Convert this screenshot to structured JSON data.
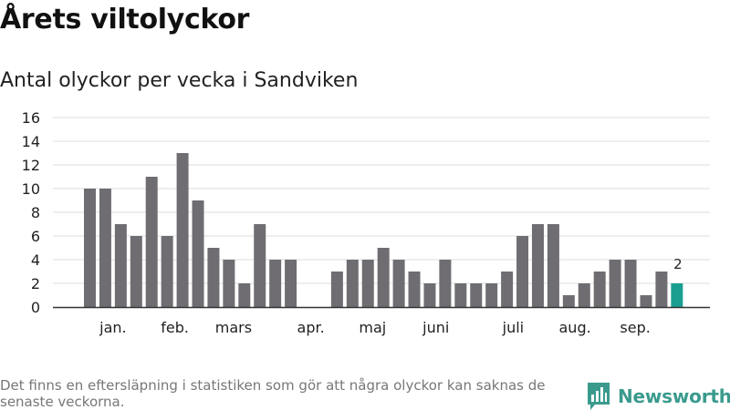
{
  "title": "Årets viltolyckor",
  "subtitle": "Antal olyckor per vecka i Sandviken",
  "footnote": "Det finns en eftersläpning i statistiken som gör att några olyckor kan saknas de senaste veckorna.",
  "brand": {
    "name": "Newsworthy",
    "logo_icon": "newsworthy-logo-icon"
  },
  "colors": {
    "bar": "#6f6d72",
    "highlight": "#1a9e8f",
    "grid": "#dddddd",
    "axis": "#333333",
    "brand": "#3a9b8d"
  },
  "chart_data": {
    "type": "bar",
    "title": "Årets viltolyckor",
    "subtitle": "Antal olyckor per vecka i Sandviken",
    "xlabel": "",
    "ylabel": "",
    "ylim": [
      0,
      16
    ],
    "y_ticks": [
      0,
      2,
      4,
      6,
      8,
      10,
      12,
      14,
      16
    ],
    "grid": true,
    "weeks": [
      1,
      2,
      3,
      4,
      5,
      6,
      7,
      8,
      9,
      10,
      11,
      12,
      13,
      14,
      15,
      16,
      17,
      18,
      19,
      20,
      21,
      22,
      23,
      24,
      25,
      26,
      27,
      28,
      29,
      30,
      31,
      32,
      33,
      34,
      35,
      36,
      37,
      38,
      39
    ],
    "values": [
      10,
      10,
      7,
      6,
      11,
      6,
      13,
      9,
      5,
      4,
      2,
      7,
      4,
      4,
      null,
      null,
      3,
      4,
      4,
      5,
      4,
      3,
      2,
      4,
      2,
      2,
      2,
      3,
      6,
      7,
      7,
      1,
      2,
      3,
      4,
      4,
      1,
      3,
      2
    ],
    "highlight_index": 38,
    "highlight_label": "2",
    "month_labels": [
      {
        "label": "jan.",
        "position": 1.5
      },
      {
        "label": "feb.",
        "position": 5.5
      },
      {
        "label": "mars",
        "position": 9.3
      },
      {
        "label": "apr.",
        "position": 14.3
      },
      {
        "label": "maj",
        "position": 18.3
      },
      {
        "label": "juni",
        "position": 22.4
      },
      {
        "label": "juli",
        "position": 27.4
      },
      {
        "label": "aug.",
        "position": 31.4
      },
      {
        "label": "sep.",
        "position": 35.3
      }
    ]
  }
}
